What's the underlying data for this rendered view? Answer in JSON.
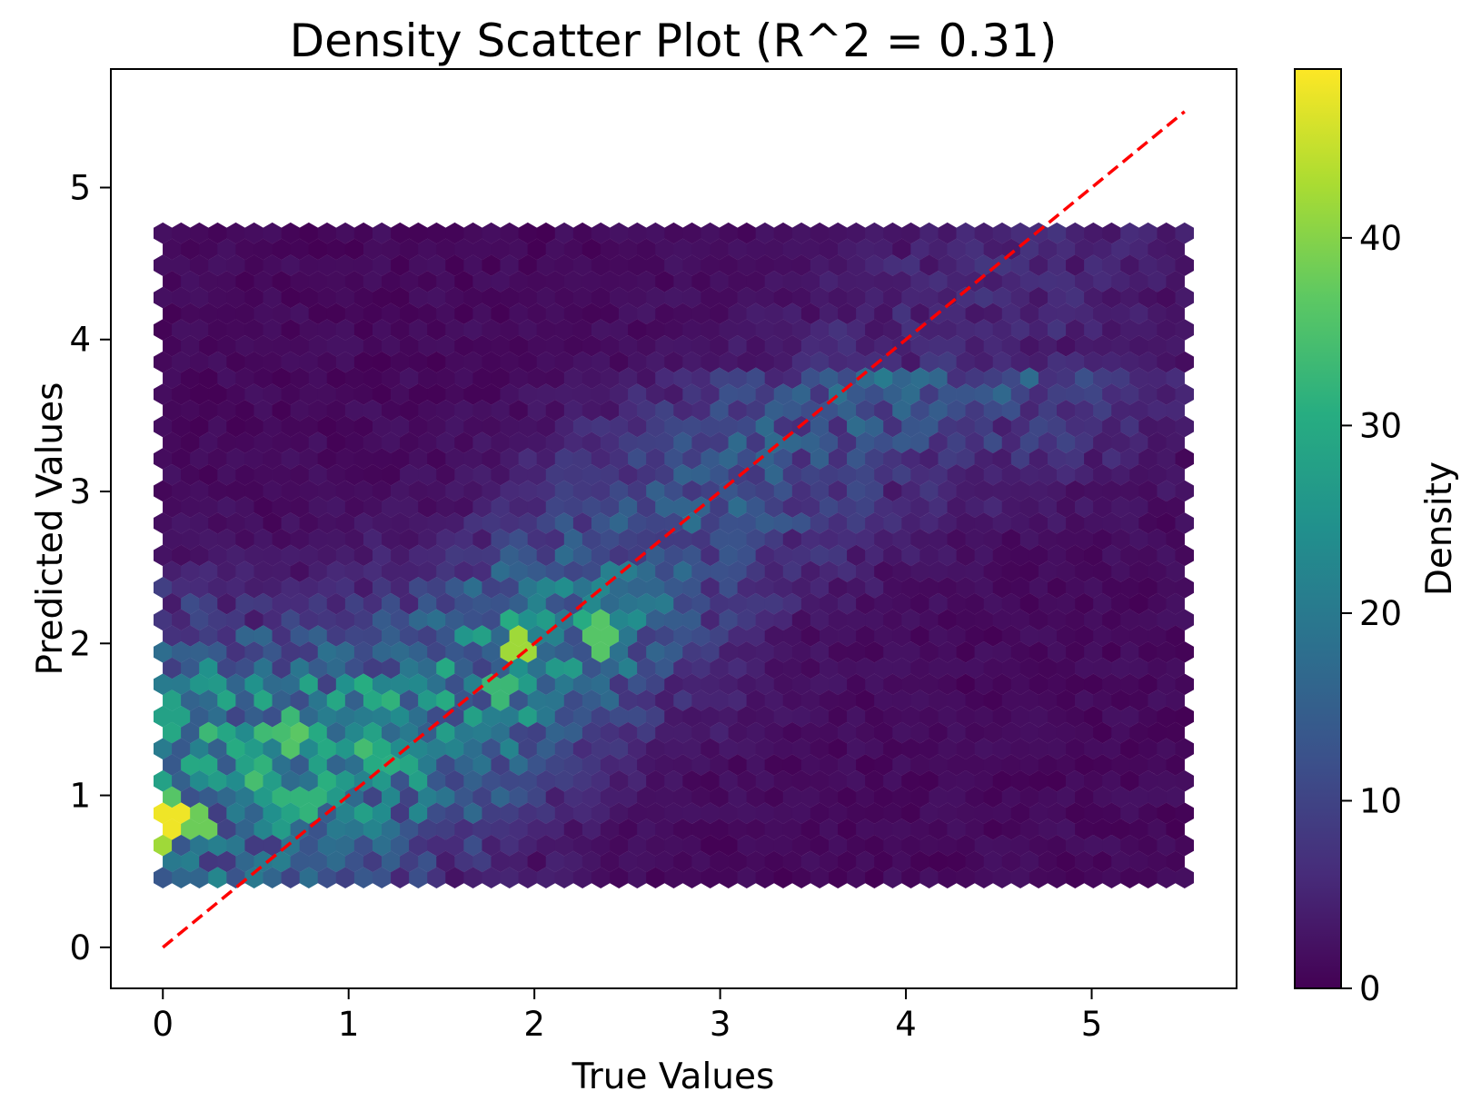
{
  "chart_data": {
    "type": "heatmap",
    "subtype": "hexbin",
    "title": "Density Scatter Plot (R^2 = 0.31)",
    "xlabel": "True Values",
    "ylabel": "Predicted Values",
    "xlim": [
      -0.28,
      5.78
    ],
    "ylim": [
      -0.27,
      5.78
    ],
    "xticks": [
      "0",
      "1",
      "2",
      "3",
      "4",
      "5"
    ],
    "yticks": [
      "0",
      "1",
      "2",
      "3",
      "4",
      "5"
    ],
    "hex_grid": {
      "x_range": [
        0,
        5.5
      ],
      "y_range": [
        0.45,
        4.7
      ],
      "gridsize": 56
    },
    "density_hotspots": [
      {
        "x": 0.05,
        "y": 0.8,
        "density": 48
      },
      {
        "x": 0.0,
        "y": 0.75,
        "density": 42
      },
      {
        "x": 0.2,
        "y": 0.8,
        "density": 38
      },
      {
        "x": 0.05,
        "y": 1.0,
        "density": 36
      },
      {
        "x": 1.95,
        "y": 1.95,
        "density": 42
      },
      {
        "x": 2.35,
        "y": 2.05,
        "density": 36
      },
      {
        "x": 0.75,
        "y": 0.98,
        "density": 32
      },
      {
        "x": 1.8,
        "y": 1.72,
        "density": 33
      },
      {
        "x": 1.1,
        "y": 1.28,
        "density": 30
      },
      {
        "x": 0.05,
        "y": 1.55,
        "density": 28
      }
    ],
    "reference_line": {
      "style": "dashed",
      "color": "#ff0000",
      "x": [
        0,
        5.5
      ],
      "y": [
        0,
        5.5
      ]
    },
    "colorbar": {
      "label": "Density",
      "colormap": "viridis",
      "range": [
        0,
        49
      ],
      "ticks": [
        "0",
        "10",
        "20",
        "30",
        "40"
      ]
    },
    "grid": false,
    "legend": "none"
  }
}
